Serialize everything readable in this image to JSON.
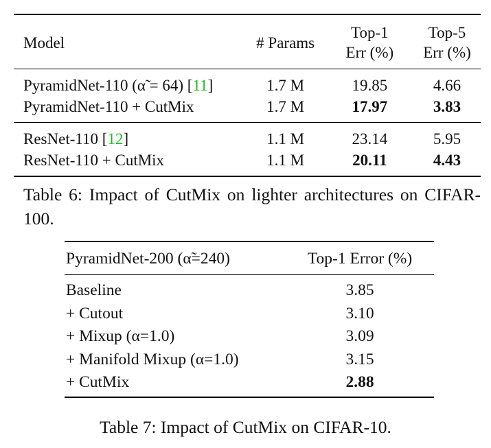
{
  "table6": {
    "headers": {
      "model": "Model",
      "params": "# Params",
      "top1_line1": "Top-1",
      "top1_line2": "Err (%)",
      "top5_line1": "Top-5",
      "top5_line2": "Err (%)"
    },
    "groups": [
      {
        "rows": [
          {
            "model_prefix": "PyramidNet-110 (α̃ = 64) [",
            "cite": "11",
            "model_suffix": "]",
            "params": "1.7 M",
            "top1": "19.85",
            "top5": "4.66",
            "bold": false
          },
          {
            "model_prefix": "PyramidNet-110 + CutMix",
            "cite": "",
            "model_suffix": "",
            "params": "1.7 M",
            "top1": "17.97",
            "top5": "3.83",
            "bold": true
          }
        ]
      },
      {
        "rows": [
          {
            "model_prefix": "ResNet-110 [",
            "cite": "12",
            "model_suffix": "]",
            "params": "1.1 M",
            "top1": "23.14",
            "top5": "5.95",
            "bold": false
          },
          {
            "model_prefix": "ResNet-110 + CutMix",
            "cite": "",
            "model_suffix": "",
            "params": "1.1 M",
            "top1": "20.11",
            "top5": "4.43",
            "bold": true
          }
        ]
      }
    ],
    "caption": "Table 6: Impact of CutMix on lighter architectures on CIFAR-100."
  },
  "table7": {
    "headers": {
      "model": "PyramidNet-200 (α̃=240)",
      "error": "Top-1 Error (%)"
    },
    "rows": [
      {
        "method": "Baseline",
        "error": "3.85",
        "bold": false
      },
      {
        "method": "+ Cutout",
        "error": "3.10",
        "bold": false
      },
      {
        "method": "+ Mixup (α=1.0)",
        "error": "3.09",
        "bold": false
      },
      {
        "method": "+ Manifold Mixup (α=1.0)",
        "error": "3.15",
        "bold": false
      },
      {
        "method": "+ CutMix",
        "error": "2.88",
        "bold": true
      }
    ],
    "caption": "Table 7: Impact of CutMix on CIFAR-10."
  },
  "colors": {
    "citation": "#22bb22",
    "text": "#111111",
    "rule": "#000000"
  }
}
